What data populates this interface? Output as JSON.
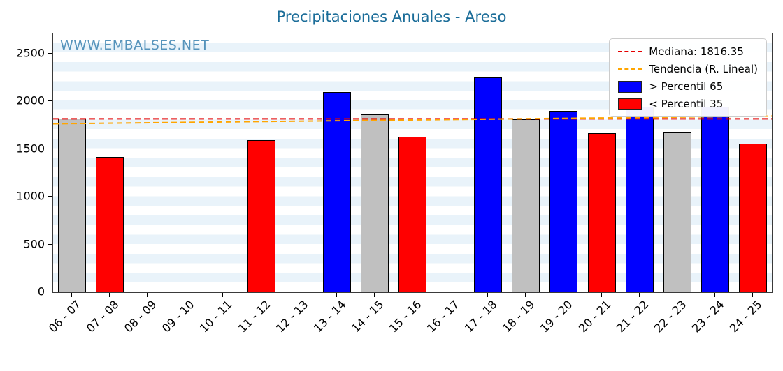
{
  "title": "Precipitaciones Anuales - Areso",
  "watermark": "WWW.EMBALSES.NET",
  "legend": {
    "median": "Mediana: 1816.35",
    "trend": "Tendencia (R. Lineal)",
    "above": "> Percentil 65",
    "below": "< Percentil 35"
  },
  "colors": {
    "above": "#0000ff",
    "below": "#ff0000",
    "mid": "#c0c0c0",
    "median_line": "#e50000",
    "trend_line": "#ffa500",
    "title": "#1b6d99",
    "watermark": "#5593bb",
    "band": "#e9f3fa",
    "bar_edge": "#000000"
  },
  "chart_data": {
    "type": "bar",
    "title": "Precipitaciones Anuales - Areso",
    "categories": [
      "06 - 07",
      "07 - 08",
      "08 - 09",
      "09 - 10",
      "10 - 11",
      "11 - 12",
      "12 - 13",
      "13 - 14",
      "14 - 15",
      "15 - 16",
      "16 - 17",
      "17 - 18",
      "18 - 19",
      "19 - 20",
      "20 - 21",
      "21 - 22",
      "22 - 23",
      "23 - 24",
      "24 - 25"
    ],
    "values": [
      1820,
      1420,
      null,
      null,
      null,
      1590,
      null,
      2100,
      1865,
      1630,
      null,
      2250,
      1810,
      1900,
      1665,
      1945,
      1670,
      1945,
      1560
    ],
    "bar_classes": [
      "mid",
      "below",
      null,
      null,
      null,
      "below",
      null,
      "above",
      "mid",
      "below",
      null,
      "above",
      "mid",
      "above",
      "below",
      "above",
      "mid",
      "above",
      "below"
    ],
    "median": 1816.35,
    "trend_line": {
      "start_value": 1765,
      "end_value": 1845
    },
    "ylim": [
      0,
      2711
    ],
    "yticks": [
      0,
      500,
      1000,
      1500,
      2000,
      2500
    ],
    "xlabel": "",
    "ylabel": "",
    "grid": true,
    "legend_position": "upper right"
  }
}
